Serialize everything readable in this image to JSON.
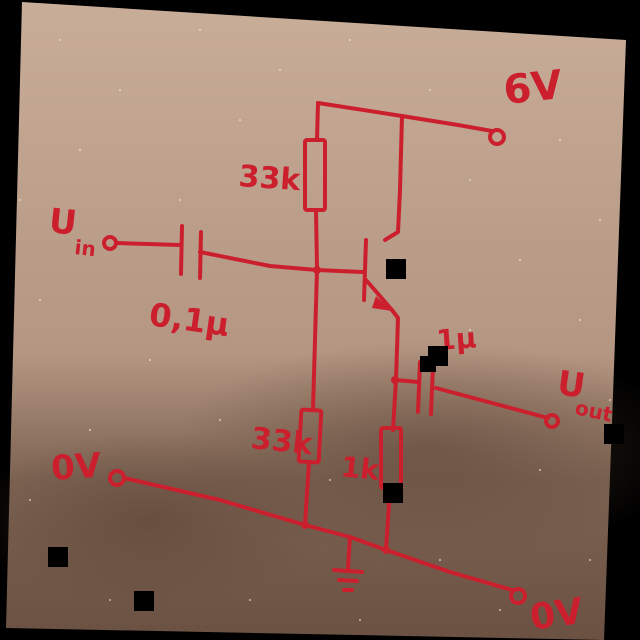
{
  "labels": {
    "supply_voltage": "6V",
    "resistor_top": "33k",
    "resistor_bottom": "33k",
    "resistor_emitter": "1k",
    "input_label": "U",
    "input_sub": "in",
    "input_capacitor": "0,1μ",
    "output_capacitor": "1μ",
    "output_label": "U",
    "output_sub": "out",
    "ground_left": "0V",
    "ground_right": "0V"
  },
  "colors": {
    "ink": "#cc1f2e",
    "paper": "#c9ad97",
    "paper_shadow": "#7a5f4d",
    "border": "#000000"
  }
}
